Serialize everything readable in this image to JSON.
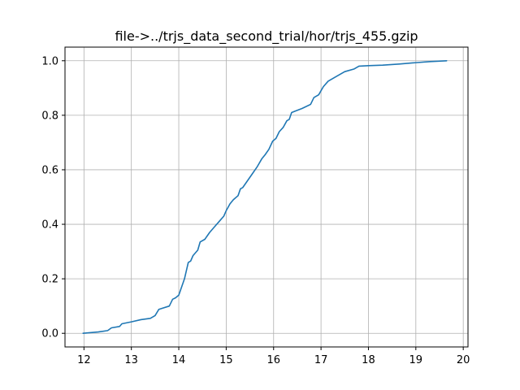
{
  "chart_data": {
    "type": "line",
    "title": "file->../trjs_data_second_trial/hor/trjs_455.gzip",
    "xlabel": "",
    "ylabel": "",
    "xlim": [
      11.6,
      20.1
    ],
    "ylim": [
      -0.05,
      1.05
    ],
    "xticks": [
      12,
      13,
      14,
      15,
      16,
      17,
      18,
      19,
      20
    ],
    "xtick_labels": [
      "12",
      "13",
      "14",
      "15",
      "16",
      "17",
      "18",
      "19",
      "20"
    ],
    "yticks": [
      0.0,
      0.2,
      0.4,
      0.6,
      0.8,
      1.0
    ],
    "ytick_labels": [
      "0.0",
      "0.2",
      "0.4",
      "0.6",
      "0.8",
      "1.0"
    ],
    "grid": true,
    "colors": {
      "series": "#1f77b4",
      "grid": "#b0b0b0",
      "axis": "#000000"
    },
    "series": [
      {
        "x": [
          11.98,
          12.3,
          12.5,
          12.58,
          12.75,
          12.8,
          13.0,
          13.2,
          13.4,
          13.5,
          13.58,
          13.62,
          13.8,
          13.87,
          13.93,
          14.0,
          14.05,
          14.12,
          14.2,
          14.25,
          14.3,
          14.4,
          14.45,
          14.55,
          14.65,
          14.75,
          14.85,
          14.95,
          15.0,
          15.08,
          15.15,
          15.25,
          15.3,
          15.35,
          15.45,
          15.55,
          15.65,
          15.75,
          15.82,
          15.9,
          15.98,
          16.05,
          16.12,
          16.2,
          16.28,
          16.33,
          16.38,
          16.45,
          16.6,
          16.78,
          16.85,
          16.95,
          17.05,
          17.15,
          17.25,
          17.35,
          17.5,
          17.7,
          17.8,
          18.0,
          18.3,
          18.65,
          19.0,
          19.3,
          19.65
        ],
        "y": [
          0.0,
          0.005,
          0.01,
          0.02,
          0.025,
          0.035,
          0.042,
          0.05,
          0.055,
          0.065,
          0.088,
          0.09,
          0.1,
          0.125,
          0.13,
          0.14,
          0.165,
          0.2,
          0.26,
          0.265,
          0.285,
          0.305,
          0.335,
          0.345,
          0.37,
          0.39,
          0.41,
          0.43,
          0.45,
          0.475,
          0.49,
          0.505,
          0.53,
          0.535,
          0.56,
          0.585,
          0.61,
          0.64,
          0.655,
          0.675,
          0.705,
          0.715,
          0.74,
          0.755,
          0.78,
          0.785,
          0.81,
          0.815,
          0.825,
          0.84,
          0.865,
          0.875,
          0.905,
          0.925,
          0.935,
          0.945,
          0.96,
          0.97,
          0.98,
          0.982,
          0.984,
          0.988,
          0.993,
          0.997,
          1.0
        ]
      }
    ]
  }
}
